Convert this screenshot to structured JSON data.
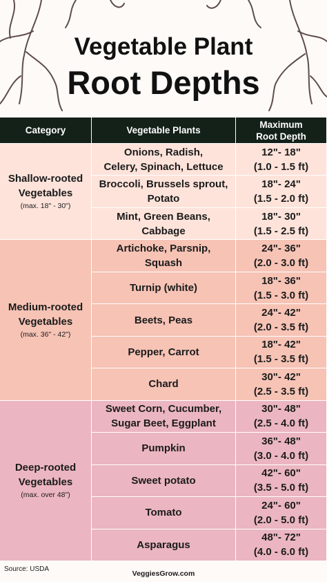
{
  "title": [
    "Vegetable Plant",
    "Root Depths"
  ],
  "table": {
    "header": [
      "Category",
      "Vegetable Plants",
      [
        "Maximum",
        "Root Depth"
      ]
    ],
    "groups": [
      {
        "category": [
          "Shallow-rooted",
          "Vegetables"
        ],
        "note": "(max. 18\" - 30\")",
        "color": "#fde3da",
        "rows": [
          {
            "plants": [
              "Onions, Radish,",
              "Celery, Spinach, Lettuce"
            ],
            "depth": [
              "12\"- 18\"",
              "(1.0 - 1.5 ft)"
            ]
          },
          {
            "plants": [
              "Broccoli, Brussels sprout,",
              "Potato"
            ],
            "depth": [
              "18\"- 24\"",
              "(1.5 - 2.0 ft)"
            ]
          },
          {
            "plants": [
              "Mint, Green Beans,",
              "Cabbage"
            ],
            "depth": [
              "18\"- 30\"",
              "(1.5 - 2.5 ft)"
            ]
          }
        ]
      },
      {
        "category": [
          "Medium-rooted",
          "Vegetables"
        ],
        "note": "(max. 36\" - 42\")",
        "color": "#f6c3b5",
        "rows": [
          {
            "plants": [
              "Artichoke, Parsnip,",
              "Squash"
            ],
            "depth": [
              "24\"- 36\"",
              "(2.0 - 3.0 ft)"
            ]
          },
          {
            "plants": [
              "Turnip (white)"
            ],
            "depth": [
              "18\"- 36\"",
              "(1.5 - 3.0 ft)"
            ]
          },
          {
            "plants": [
              "Beets, Peas"
            ],
            "depth": [
              "24\"- 42\"",
              "(2.0 - 3.5 ft)"
            ]
          },
          {
            "plants": [
              "Pepper, Carrot"
            ],
            "depth": [
              "18\"- 42\"",
              "(1.5 - 3.5 ft)"
            ]
          },
          {
            "plants": [
              "Chard"
            ],
            "depth": [
              "30\"- 42\"",
              "(2.5 - 3.5 ft)"
            ]
          }
        ]
      },
      {
        "category": [
          "Deep-rooted",
          "Vegetables"
        ],
        "note": "(max. over 48\")",
        "color": "#ebb6c1",
        "rows": [
          {
            "plants": [
              "Sweet Corn, Cucumber,",
              "Sugar Beet, Eggplant"
            ],
            "depth": [
              "30\"- 48\"",
              "(2.5 - 4.0 ft)"
            ]
          },
          {
            "plants": [
              "Pumpkin"
            ],
            "depth": [
              "36\"- 48\"",
              "(3.0 - 4.0 ft)"
            ]
          },
          {
            "plants": [
              "Sweet potato"
            ],
            "depth": [
              "42\"- 60\"",
              "(3.5 - 5.0 ft)"
            ]
          },
          {
            "plants": [
              "Tomato"
            ],
            "depth": [
              "24\"- 60\"",
              "(2.0 - 5.0 ft)"
            ]
          },
          {
            "plants": [
              "Asparagus"
            ],
            "depth": [
              "48\"- 72\"",
              "(4.0 - 6.0 ft)"
            ]
          }
        ]
      }
    ]
  },
  "footer": {
    "source": "Source: USDA",
    "site": "VeggiesGrow.com"
  }
}
